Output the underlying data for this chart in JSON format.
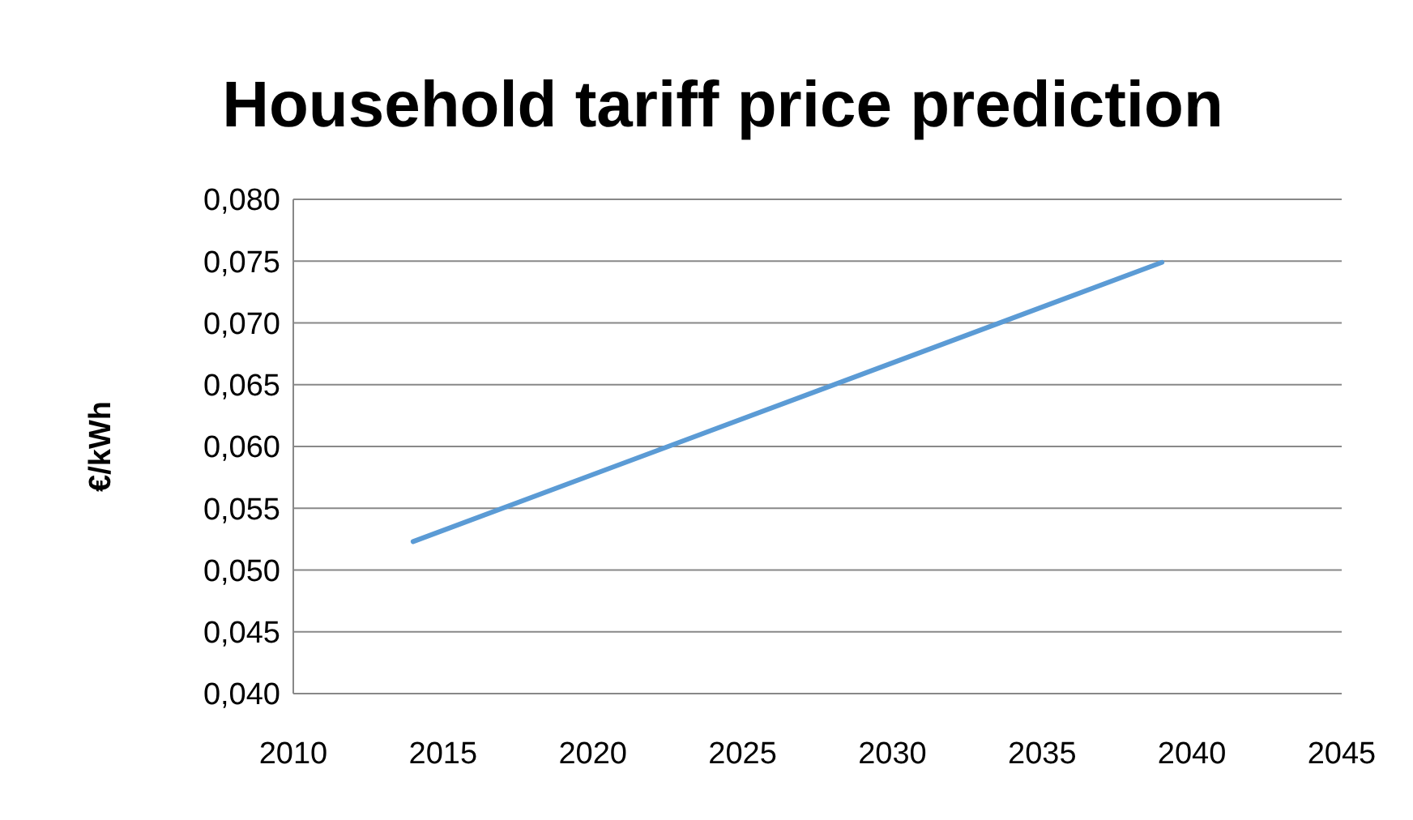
{
  "chart_data": {
    "type": "line",
    "title": "Household tariff price prediction",
    "ylabel": "€/kWh",
    "x": [
      2014,
      2039
    ],
    "series": [
      {
        "color": "#5b9bd5",
        "values": [
          0.0523,
          0.0749
        ]
      }
    ],
    "xlim": [
      2010,
      2045
    ],
    "xticks": [
      2010,
      2015,
      2020,
      2025,
      2030,
      2035,
      2040,
      2045
    ],
    "ylim": [
      0.04,
      0.08
    ],
    "yticks": [
      {
        "value": 0.04,
        "label": "0,040"
      },
      {
        "value": 0.045,
        "label": "0,045"
      },
      {
        "value": 0.05,
        "label": "0,050"
      },
      {
        "value": 0.055,
        "label": "0,055"
      },
      {
        "value": 0.06,
        "label": "0,060"
      },
      {
        "value": 0.065,
        "label": "0,065"
      },
      {
        "value": 0.07,
        "label": "0,070"
      },
      {
        "value": 0.075,
        "label": "0,075"
      },
      {
        "value": 0.08,
        "label": "0,080"
      }
    ],
    "grid": "y",
    "marker": "none",
    "line_style": "solid"
  }
}
